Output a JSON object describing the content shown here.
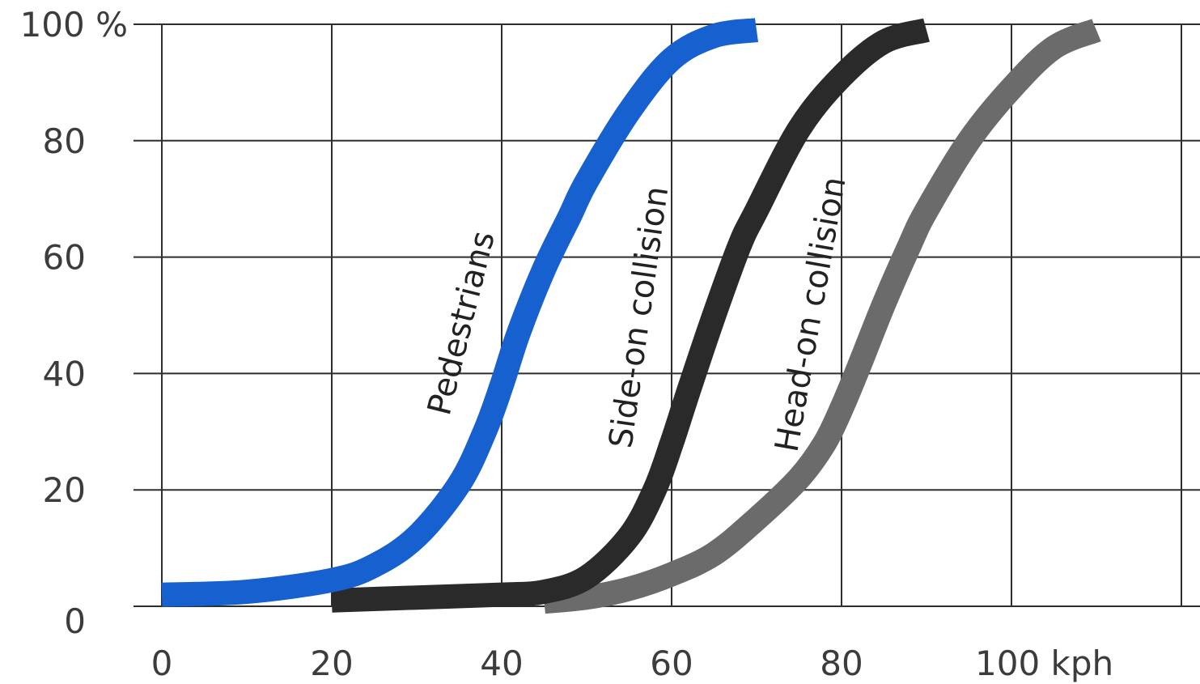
{
  "chart_data": {
    "type": "line",
    "title": "",
    "xlabel": "",
    "ylabel": "",
    "xlim": [
      0,
      120
    ],
    "ylim": [
      0,
      100
    ],
    "grid": true,
    "x_ticks": [
      {
        "value": 0,
        "label": "0"
      },
      {
        "value": 20,
        "label": "20"
      },
      {
        "value": 40,
        "label": "40"
      },
      {
        "value": 60,
        "label": "60"
      },
      {
        "value": 80,
        "label": "80"
      },
      {
        "value": 100,
        "label": "100 kph"
      }
    ],
    "y_ticks": [
      {
        "value": 0,
        "label": "0"
      },
      {
        "value": 20,
        "label": "20"
      },
      {
        "value": 40,
        "label": "40"
      },
      {
        "value": 60,
        "label": "60"
      },
      {
        "value": 80,
        "label": "80"
      },
      {
        "value": 100,
        "label": "100 %"
      }
    ],
    "series": [
      {
        "name": "Pedestrians",
        "color": "#1660d0",
        "x": [
          0,
          10,
          20,
          25,
          30,
          35,
          38,
          40,
          42,
          45,
          48,
          50,
          55,
          60,
          65,
          70
        ],
        "y": [
          2,
          2.5,
          4.5,
          7,
          12,
          21,
          30,
          38,
          47,
          58,
          67,
          73,
          85,
          94,
          98,
          99
        ]
      },
      {
        "name": "Side-on collision",
        "color": "#2a2a2a",
        "x": [
          20,
          30,
          40,
          45,
          50,
          55,
          58,
          60,
          62,
          65,
          68,
          70,
          75,
          80,
          85,
          90
        ],
        "y": [
          1,
          1.5,
          2,
          2.5,
          5,
          12,
          20,
          28,
          37,
          50,
          62,
          68,
          82,
          91,
          97,
          99
        ]
      },
      {
        "name": "Head-on collision",
        "color": "#6b6b6b",
        "x": [
          45,
          50,
          55,
          60,
          65,
          70,
          75,
          78,
          80,
          82,
          85,
          88,
          90,
          95,
          100,
          105,
          110
        ],
        "y": [
          0.8,
          1.5,
          3,
          5.5,
          9,
          15,
          22,
          28,
          34,
          41,
          52,
          62,
          68,
          80,
          89,
          96,
          99
        ]
      }
    ]
  }
}
